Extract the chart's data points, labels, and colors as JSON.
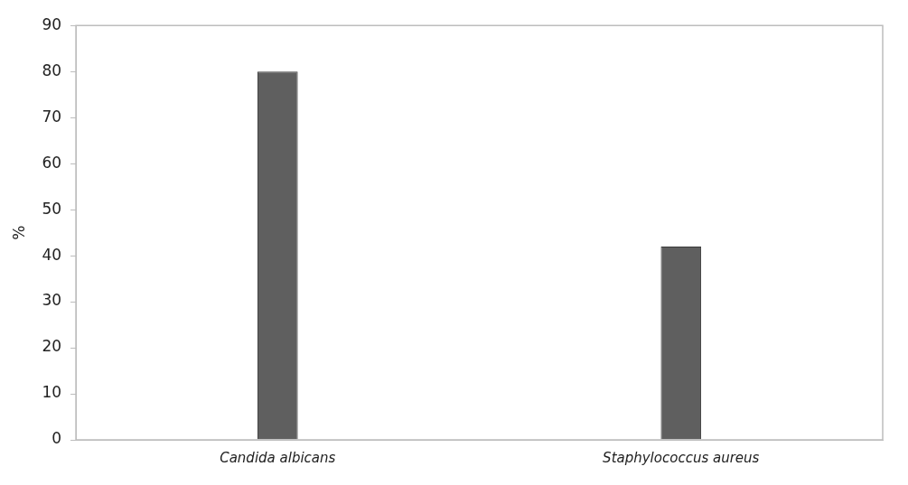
{
  "chart_data": {
    "type": "bar",
    "ylabel": "%",
    "categories": [
      "Candida albicans",
      "Staphylococcus aureus"
    ],
    "values": [
      80,
      42
    ],
    "color": "#5f5f5f",
    "ylim": [
      0,
      90
    ],
    "yticks": [
      0,
      10,
      20,
      30,
      40,
      50,
      60,
      70,
      80,
      90
    ],
    "grid": false
  }
}
